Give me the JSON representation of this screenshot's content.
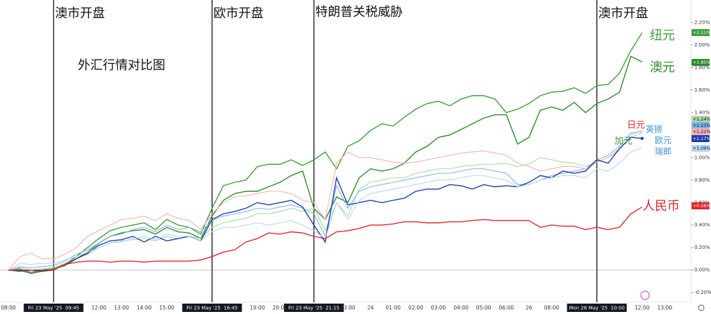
{
  "chart_data": {
    "type": "line",
    "title": "外汇行情对比图",
    "categories": [
      "08:00",
      null,
      null,
      null,
      "Fri 23 May '25  09:45",
      null,
      null,
      null,
      "12:00",
      null,
      "13:00",
      null,
      "14:00",
      null,
      "15:00",
      null,
      null,
      null,
      "Fri 23 May '25  16:45",
      null,
      null,
      null,
      "19:00",
      null,
      "20:00",
      null,
      null,
      "Fri 23 May '25  21:15",
      null,
      null,
      "23:00",
      null,
      "24",
      null,
      "01:00",
      null,
      "02:00",
      null,
      "03:00",
      null,
      "04:00",
      null,
      "05:00",
      null,
      "06:00",
      null,
      "26",
      null,
      "08:00",
      null,
      null,
      null,
      "Mon 26 May '25  10:00",
      null,
      null,
      null,
      "12:00",
      null,
      "13:00"
    ],
    "annotations": [
      {
        "text": "澳市开盘",
        "category": 4
      },
      {
        "text": "欧市开盘",
        "category": 18
      },
      {
        "text": "特朗普关税威胁",
        "category": 27
      },
      {
        "text": "澳市开盘",
        "category": 52
      }
    ],
    "ylim": [
      -0.31,
      2.4
    ],
    "yticks": [
      {
        "value": -0.2,
        "label": "-0.20%"
      },
      {
        "value": 0,
        "label": "0.00%"
      },
      {
        "value": 0.2,
        "label": "0.20%"
      },
      {
        "value": 0.4,
        "label": "0.40%"
      },
      {
        "value": 0.6,
        "label": "0.60%"
      },
      {
        "value": 0.8,
        "label": "0.80%"
      },
      {
        "value": 1.0,
        "label": "1.00%"
      },
      {
        "value": 1.2,
        "label": "1.20%"
      },
      {
        "value": 1.4,
        "label": "1.40%"
      },
      {
        "value": 1.6,
        "label": "1.60%"
      },
      {
        "value": 1.8,
        "label": "1.80%"
      },
      {
        "value": 2.0,
        "label": "2.00%"
      },
      {
        "value": 2.2,
        "label": "2.20%"
      }
    ],
    "grid": false,
    "series": [
      {
        "name": "纽元",
        "color": "#3e9e3a",
        "end_label": "+2.11%",
        "values": [
          0,
          0.01,
          -0.02,
          0,
          0.02,
          0.05,
          0.12,
          0.2,
          0.28,
          0.35,
          0.38,
          0.4,
          0.42,
          0.36,
          0.45,
          0.4,
          0.38,
          0.32,
          0.55,
          0.75,
          0.78,
          0.8,
          0.92,
          0.94,
          0.94,
          0.98,
          0.93,
          0.98,
          1.05,
          0.9,
          1.1,
          1.15,
          1.24,
          1.3,
          1.28,
          1.36,
          1.43,
          1.48,
          1.5,
          1.46,
          1.52,
          1.55,
          1.55,
          1.52,
          1.4,
          1.43,
          1.48,
          1.55,
          1.58,
          1.59,
          1.62,
          1.57,
          1.64,
          1.65,
          1.75,
          1.95,
          2.11,
          null,
          null
        ]
      },
      {
        "name": "澳元",
        "color": "#2e8b2e",
        "end_label": "+1.85%",
        "values": [
          0,
          0,
          -0.03,
          -0.01,
          0.01,
          0.04,
          0.1,
          0.16,
          0.24,
          0.3,
          0.33,
          0.35,
          0.36,
          0.32,
          0.38,
          0.34,
          0.33,
          0.28,
          0.48,
          0.62,
          0.68,
          0.7,
          0.7,
          0.74,
          0.78,
          0.84,
          0.88,
          0.55,
          0.45,
          0.65,
          0.6,
          0.82,
          0.9,
          0.88,
          0.9,
          0.95,
          1.05,
          1.1,
          1.18,
          1.2,
          1.25,
          1.3,
          1.35,
          1.38,
          1.38,
          1.12,
          1.18,
          1.42,
          1.45,
          1.42,
          1.49,
          1.4,
          1.48,
          1.52,
          1.58,
          1.9,
          1.85,
          null,
          null
        ]
      },
      {
        "name": "加元",
        "color": "#a9d9a0",
        "end_label": "+1.24%",
        "values": [
          0,
          0.02,
          0,
          0.01,
          0.02,
          0.06,
          0.1,
          0.14,
          0.2,
          0.24,
          0.26,
          0.27,
          0.28,
          0.26,
          0.3,
          0.28,
          0.3,
          0.28,
          0.38,
          0.42,
          0.44,
          0.46,
          0.5,
          0.5,
          0.52,
          0.55,
          0.52,
          0.55,
          0.35,
          0.6,
          0.48,
          0.72,
          0.78,
          0.8,
          0.82,
          0.82,
          0.86,
          0.88,
          0.9,
          0.9,
          0.92,
          0.93,
          0.94,
          0.94,
          0.95,
          0.92,
          0.94,
          1.0,
          0.98,
          0.96,
          0.95,
          0.92,
          0.96,
          1.0,
          1.06,
          1.2,
          1.24,
          null,
          null
        ]
      },
      {
        "name": "欧元",
        "color": "#7fb4e6",
        "end_label": "+1.23%",
        "values": [
          0,
          0.03,
          0.02,
          0.03,
          0.04,
          0.08,
          0.14,
          0.18,
          0.24,
          0.3,
          0.32,
          0.36,
          0.38,
          0.34,
          0.4,
          0.36,
          0.38,
          0.34,
          0.44,
          0.48,
          0.5,
          0.52,
          0.55,
          0.54,
          0.56,
          0.58,
          0.55,
          0.5,
          0.3,
          0.75,
          0.55,
          0.7,
          0.74,
          0.76,
          0.78,
          0.8,
          0.82,
          0.84,
          0.86,
          0.86,
          0.88,
          0.9,
          0.9,
          0.88,
          0.86,
          0.76,
          0.76,
          0.8,
          0.84,
          0.86,
          0.88,
          0.9,
          0.98,
          1.02,
          1.1,
          1.22,
          1.23,
          null,
          null
        ]
      },
      {
        "name": "日元",
        "color": "#f4b0b0",
        "end_label": "+1.22%",
        "values": [
          0,
          0.12,
          0.15,
          0.1,
          0.1,
          0.14,
          0.2,
          0.3,
          0.35,
          0.4,
          0.45,
          0.46,
          0.48,
          0.44,
          0.5,
          0.46,
          0.44,
          0.36,
          0.5,
          0.6,
          0.65,
          0.66,
          0.68,
          0.7,
          0.7,
          0.68,
          0.62,
          0.6,
          0.45,
          0.95,
          1.05,
          1.0,
          1.0,
          0.98,
          0.96,
          0.95,
          0.96,
          0.98,
          1.0,
          1.02,
          1.04,
          1.05,
          1.06,
          1.04,
          1.02,
          0.95,
          0.92,
          0.88,
          0.9,
          0.92,
          0.92,
          0.9,
          0.96,
          1.0,
          1.08,
          1.18,
          1.22,
          null,
          null
        ]
      },
      {
        "name": "英镑",
        "color": "#1a3db0",
        "end_label": "+1.17%",
        "values": [
          0,
          -0.01,
          0,
          -0.01,
          0,
          0.05,
          0.1,
          0.15,
          0.22,
          0.26,
          0.27,
          0.3,
          0.25,
          0.3,
          0.26,
          0.28,
          0.3,
          0.26,
          0.45,
          0.5,
          0.52,
          0.55,
          0.6,
          0.58,
          0.6,
          0.62,
          0.56,
          0.4,
          0.25,
          0.82,
          0.58,
          0.6,
          0.62,
          0.6,
          0.62,
          0.64,
          0.7,
          0.72,
          0.72,
          0.76,
          0.75,
          0.72,
          0.76,
          0.74,
          0.75,
          0.74,
          0.78,
          0.84,
          0.82,
          0.88,
          0.86,
          0.88,
          0.98,
          0.95,
          1.08,
          1.18,
          1.17,
          null,
          null
        ]
      },
      {
        "name": "瑞郎",
        "color": "#b8d5f2",
        "end_label": "+1.09%",
        "values": [
          0,
          0.06,
          0.05,
          0.06,
          0.06,
          0.09,
          0.12,
          0.16,
          0.2,
          0.24,
          0.25,
          0.28,
          0.3,
          0.27,
          0.32,
          0.3,
          0.3,
          0.26,
          0.34,
          0.38,
          0.38,
          0.4,
          0.42,
          0.4,
          0.42,
          0.44,
          0.4,
          0.35,
          0.28,
          0.6,
          0.45,
          0.62,
          0.68,
          0.7,
          0.72,
          0.74,
          0.76,
          0.78,
          0.8,
          0.8,
          0.82,
          0.84,
          0.84,
          0.82,
          0.8,
          0.74,
          0.76,
          0.8,
          0.82,
          0.84,
          0.84,
          0.82,
          0.9,
          0.88,
          0.95,
          1.05,
          1.09,
          null,
          null
        ]
      },
      {
        "name": "人民币",
        "color": "#e0252b",
        "end_label": "+0.56%",
        "values": [
          0,
          0,
          0,
          0,
          0,
          0.05,
          0.07,
          0.08,
          0.08,
          0.07,
          0.08,
          0.08,
          0.07,
          0.08,
          0.08,
          0.08,
          0.08,
          0.09,
          0.12,
          0.16,
          0.18,
          0.25,
          0.28,
          0.33,
          0.32,
          0.34,
          0.33,
          0.3,
          0.28,
          0.34,
          0.35,
          0.37,
          0.4,
          0.4,
          0.41,
          0.43,
          0.43,
          0.42,
          0.42,
          0.43,
          0.43,
          0.44,
          0.45,
          0.44,
          0.44,
          0.44,
          0.44,
          0.38,
          0.4,
          0.39,
          0.39,
          0.36,
          0.38,
          0.36,
          0.38,
          0.5,
          0.56,
          null,
          null
        ]
      }
    ]
  }
}
